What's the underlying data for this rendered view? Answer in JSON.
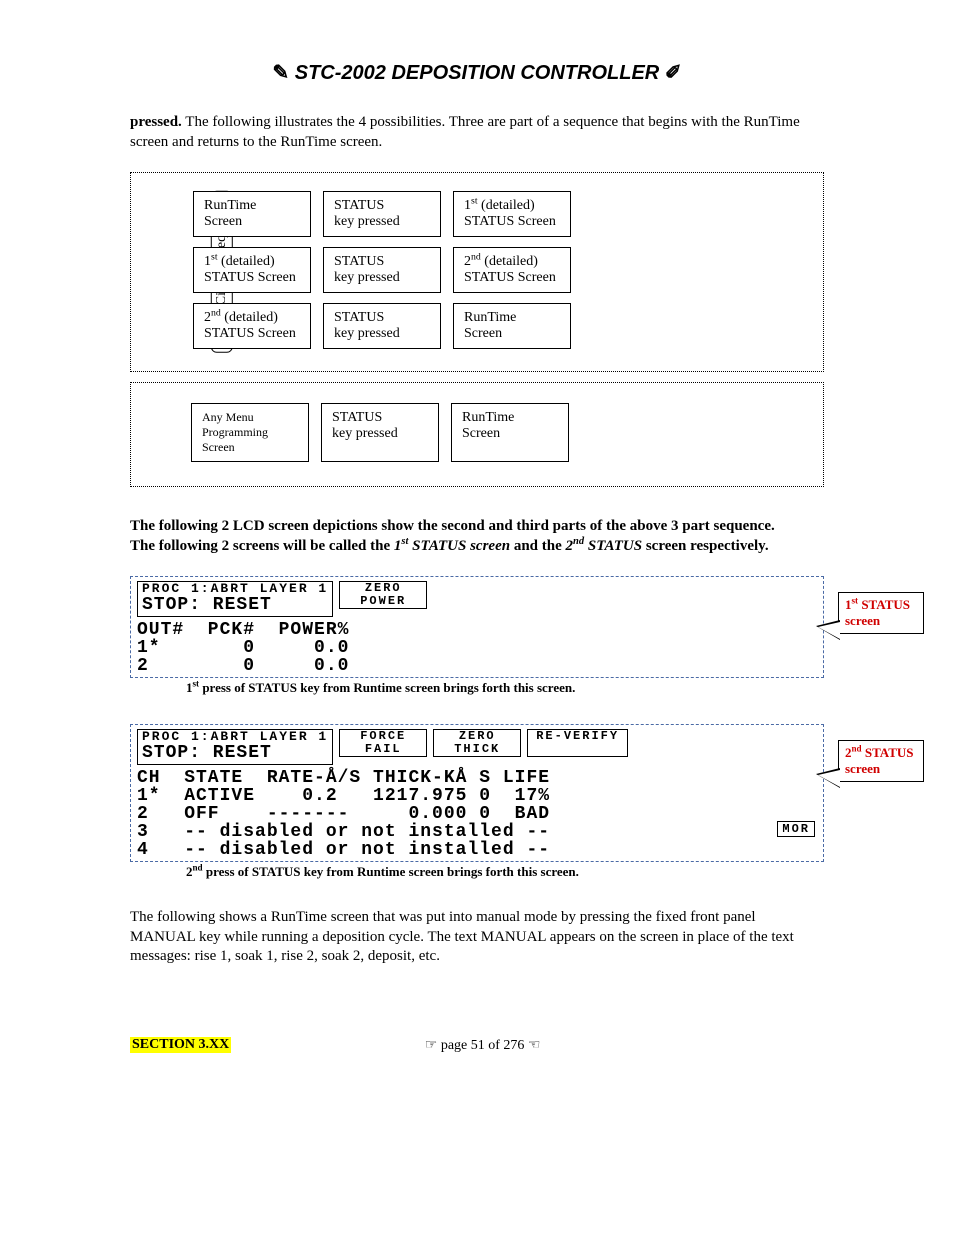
{
  "header": {
    "left_wing": "✎",
    "title": "STC-2002  DEPOSITION CONTROLLER",
    "right_wing": "✐"
  },
  "intro": {
    "lead_bold": "pressed.",
    "rest": " The following illustrates the 4 possibilities. Three are part of a sequence that begins with the RunTime screen and returns to the RunTime screen."
  },
  "flow": {
    "vertical_label": "3 Part Circular Sequence",
    "rows": [
      [
        {
          "l1": "RunTime",
          "l2": "Screen"
        },
        {
          "l1": "STATUS",
          "l2": "key pressed"
        },
        {
          "l1_html": "1<sup>st</sup> (detailed)",
          "l2": "STATUS Screen"
        }
      ],
      [
        {
          "l1_html": "1<sup>st</sup> (detailed)",
          "l2": "STATUS Screen"
        },
        {
          "l1": "STATUS",
          "l2": "key pressed"
        },
        {
          "l1_html": "2<sup>nd</sup> (detailed)",
          "l2": "STATUS Screen"
        }
      ],
      [
        {
          "l1_html": "2<sup>nd</sup> (detailed)",
          "l2": "STATUS Screen"
        },
        {
          "l1": "STATUS",
          "l2": "key pressed"
        },
        {
          "l1": "RunTime",
          "l2": "Screen"
        }
      ]
    ],
    "row4": [
      {
        "l1": "Any Menu",
        "l2": "Programming",
        "l3": "Screen",
        "small": true
      },
      {
        "l1": "STATUS",
        "l2": "key pressed"
      },
      {
        "l1": "RunTime",
        "l2": "Screen"
      }
    ]
  },
  "mid_text": {
    "line1": "The following 2 LCD screen depictions show the second and third parts of the above 3 part sequence.",
    "line2_a": "The following 2 screens will be called the ",
    "line2_b": "1",
    "line2_c": "st",
    "line2_d": " STATUS screen",
    "line2_e": " and the ",
    "line2_f": "2",
    "line2_g": "nd",
    "line2_h": " STATUS",
    "line2_i": " screen respectively."
  },
  "lcd1": {
    "hdr_small": "PROC 1:ABRT LAYER  1",
    "hdr_big": " STOP: RESET",
    "btn1_l1": "ZERO",
    "btn1_l2": "POWER",
    "body": "OUT#  PCK#  POWER%\n1*       0     0.0\n2        0     0.0",
    "caption_pre": "1",
    "caption_sup": "st",
    "caption_rest": " press of STATUS key from Runtime screen brings forth this screen.",
    "callout_pre": "1",
    "callout_sup": "st",
    "callout_rest": " STATUS screen"
  },
  "lcd2": {
    "hdr_small": "PROC 1:ABRT LAYER  1",
    "hdr_big": " STOP: RESET",
    "btns": [
      {
        "l1": "FORCE",
        "l2": "FAIL"
      },
      {
        "l1": "ZERO",
        "l2": "THICK"
      },
      {
        "l1": "RE-VERIFY",
        "l2": ""
      }
    ],
    "body": "CH  STATE  RATE-Å/S THICK-KÅ S LIFE\n1*  ACTIVE    0.2   1217.975 0  17%\n2   OFF    -------     0.000 0  BAD\n3   -- disabled or not installed --\n4   -- disabled or not installed --",
    "mor": "MOR",
    "caption_pre": "2",
    "caption_sup": "nd",
    "caption_rest": " press of STATUS key from Runtime screen brings forth this screen.",
    "callout_pre": "2",
    "callout_sup": "nd",
    "callout_rest": " STATUS screen"
  },
  "tail_text": "The following shows a RunTime screen that was put into manual mode by pressing the fixed front panel MANUAL key while running a deposition cycle. The text MANUAL appears on the screen in place of the text messages: rise 1, soak 1, rise 2, soak 2, deposit, etc.",
  "footer": {
    "section": "SECTION 3.XX",
    "page_left": "☞",
    "page_mid": " page 51 of 276 ",
    "page_right": "☜"
  },
  "colors": {
    "highlight": "#ffff00",
    "callout_text": "#d00000",
    "dash_border": "#4a6aa5"
  }
}
